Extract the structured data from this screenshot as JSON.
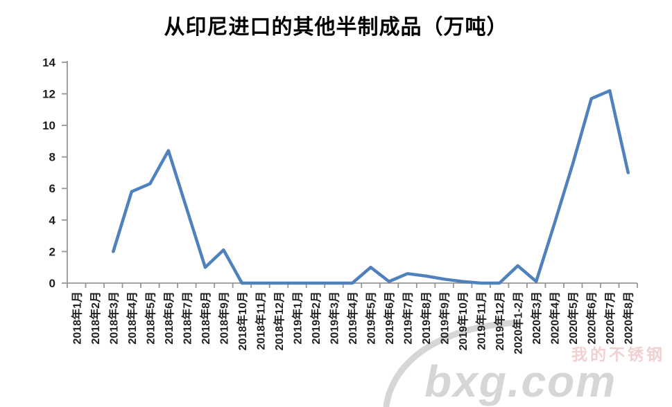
{
  "page": {
    "background": "#ffffff"
  },
  "chart_data": {
    "type": "line",
    "title": "从印尼进口的其他半制成品（万吨）",
    "categories": [
      "2018年1月",
      "2018年2月",
      "2018年3月",
      "2018年4月",
      "2018年5月",
      "2018年6月",
      "2018年7月",
      "2018年8月",
      "2018年9月",
      "2018年10月",
      "2018年11月",
      "2018年12月",
      "2019年1月",
      "2019年2月",
      "2019年3月",
      "2019年4月",
      "2019年5月",
      "2019年6月",
      "2019年7月",
      "2019年8月",
      "2019年9月",
      "2019年10月",
      "2019年11月",
      "2019年12月",
      "2020年1-2月",
      "2020年3月",
      "2020年4月",
      "2020年5月",
      "2020年6月",
      "2020年7月",
      "2020年8月"
    ],
    "values": [
      null,
      null,
      2.0,
      5.8,
      6.3,
      8.4,
      4.7,
      1.0,
      2.1,
      0,
      0,
      0,
      0,
      0,
      0,
      0,
      1.0,
      0.1,
      0.6,
      0.45,
      0.25,
      0.1,
      0,
      0,
      1.1,
      0.1,
      3.8,
      7.6,
      11.7,
      12.2,
      7.0
    ],
    "yticks": [
      0,
      2,
      4,
      6,
      8,
      10,
      12,
      14
    ],
    "ylim": [
      0,
      14
    ],
    "grid": false,
    "legend": "none",
    "colors": {
      "line": "#4F81BD",
      "axis": "#969696",
      "tick_label": "#1f1f1f",
      "watermark_grey": "#d2d2d2",
      "watermark_red": "#d88080"
    }
  },
  "watermark": {
    "brand": "bxg.com",
    "cjk": "我的不锈钢"
  }
}
